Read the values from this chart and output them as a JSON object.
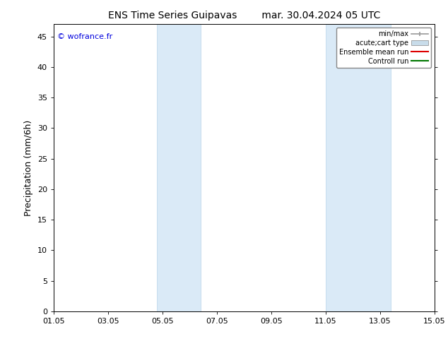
{
  "title_left": "ENS Time Series Guipavas",
  "title_right": "mar. 30.04.2024 05 UTC",
  "ylabel": "Precipitation (mm/6h)",
  "watermark": "© wofrance.fr",
  "watermark_color": "#0000dd",
  "xtick_labels": [
    "01.05",
    "03.05",
    "05.05",
    "07.05",
    "09.05",
    "11.05",
    "13.05",
    "15.05"
  ],
  "xtick_positions": [
    0,
    2,
    4,
    6,
    8,
    10,
    12,
    14
  ],
  "ylim": [
    0,
    47
  ],
  "ytick_labels": [
    "0",
    "5",
    "10",
    "15",
    "20",
    "25",
    "30",
    "35",
    "40",
    "45"
  ],
  "ytick_positions": [
    0,
    5,
    10,
    15,
    20,
    25,
    30,
    35,
    40,
    45
  ],
  "shaded_regions": [
    {
      "x_start": 3.8,
      "x_end": 5.4
    },
    {
      "x_start": 10.0,
      "x_end": 12.4
    }
  ],
  "shade_color": "#daeaf7",
  "shade_edge_color": "#b8d4ea",
  "background_color": "#ffffff",
  "axes_bg_color": "#ffffff",
  "legend_entries": [
    {
      "label": "min/max",
      "color": "#999999",
      "lw": 1.2,
      "style": "minmax"
    },
    {
      "label": "acute;cart type",
      "color": "#c8dcea",
      "lw": 8,
      "style": "band"
    },
    {
      "label": "Ensemble mean run",
      "color": "#dd0000",
      "lw": 1.5,
      "style": "line"
    },
    {
      "label": "Controll run",
      "color": "#007700",
      "lw": 1.5,
      "style": "line"
    }
  ],
  "title_fontsize": 10,
  "label_fontsize": 9,
  "tick_fontsize": 8,
  "watermark_fontsize": 8,
  "legend_fontsize": 7
}
